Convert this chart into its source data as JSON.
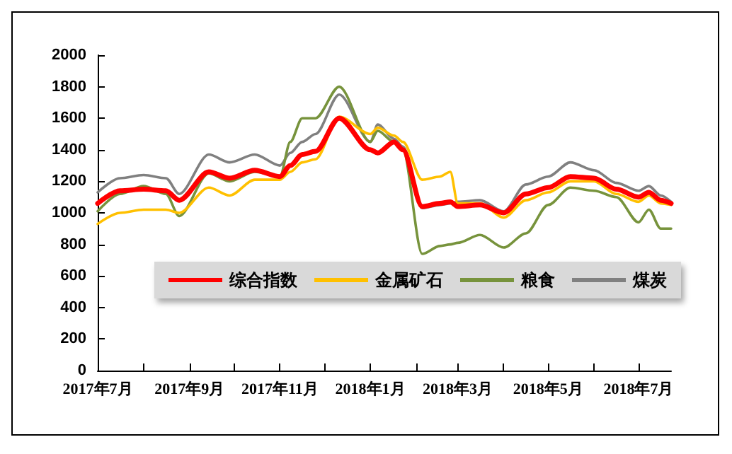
{
  "chart_data": {
    "type": "line",
    "x": [
      "2017-07-01",
      "2017-07-16",
      "2017-08-01",
      "2017-08-16",
      "2017-08-25",
      "2017-09-14",
      "2017-09-28",
      "2017-10-15",
      "2017-11-01",
      "2017-11-08",
      "2017-11-16",
      "2017-11-25",
      "2017-12-11",
      "2018-01-01",
      "2018-01-06",
      "2018-01-17",
      "2018-01-23",
      "2018-02-05",
      "2018-02-17",
      "2018-02-24",
      "2018-03-01",
      "2018-03-16",
      "2018-04-01",
      "2018-04-16",
      "2018-05-01",
      "2018-05-16",
      "2018-06-01",
      "2018-06-16",
      "2018-07-01",
      "2018-07-08",
      "2018-07-16",
      "2018-07-23"
    ],
    "series": [
      {
        "name": "综合指数",
        "color": "#ff0000",
        "values": [
          1060,
          1140,
          1150,
          1140,
          1080,
          1260,
          1220,
          1270,
          1230,
          1300,
          1370,
          1390,
          1600,
          1400,
          1380,
          1450,
          1400,
          1040,
          1060,
          1070,
          1040,
          1050,
          1000,
          1120,
          1160,
          1230,
          1220,
          1150,
          1100,
          1130,
          1080,
          1060
        ]
      },
      {
        "name": "金属矿石",
        "color": "#ffc000",
        "values": [
          930,
          1000,
          1020,
          1020,
          1000,
          1160,
          1110,
          1210,
          1210,
          1260,
          1320,
          1340,
          1610,
          1500,
          1540,
          1490,
          1450,
          1210,
          1230,
          1260,
          1060,
          1060,
          970,
          1080,
          1130,
          1200,
          1200,
          1120,
          1070,
          1110,
          1060,
          1050
        ]
      },
      {
        "name": "粮食",
        "color": "#77933c",
        "values": [
          1010,
          1120,
          1170,
          1120,
          980,
          1250,
          1200,
          1260,
          1230,
          1450,
          1600,
          1600,
          1800,
          1450,
          1520,
          1450,
          1400,
          740,
          790,
          800,
          810,
          860,
          780,
          870,
          1050,
          1160,
          1140,
          1100,
          940,
          1020,
          900,
          900
        ]
      },
      {
        "name": "煤炭",
        "color": "#808080",
        "values": [
          1130,
          1220,
          1240,
          1220,
          1120,
          1370,
          1320,
          1370,
          1300,
          1380,
          1450,
          1500,
          1750,
          1450,
          1560,
          1470,
          1420,
          1030,
          1050,
          1060,
          1070,
          1080,
          1010,
          1180,
          1230,
          1320,
          1270,
          1190,
          1140,
          1170,
          1110,
          1070
        ]
      }
    ],
    "xlim": [
      "2017-07-01",
      "2018-07-23"
    ],
    "xticks": [
      {
        "value": "2017-07-01",
        "label": "2017年7月"
      },
      {
        "value": "2017-08-01",
        "label": null
      },
      {
        "value": "2017-09-01",
        "label": "2017年9月"
      },
      {
        "value": "2017-10-01",
        "label": null
      },
      {
        "value": "2017-11-01",
        "label": "2017年11月"
      },
      {
        "value": "2017-12-01",
        "label": null
      },
      {
        "value": "2018-01-01",
        "label": "2018年1月"
      },
      {
        "value": "2018-02-01",
        "label": null
      },
      {
        "value": "2018-03-01",
        "label": "2018年3月"
      },
      {
        "value": "2018-04-01",
        "label": null
      },
      {
        "value": "2018-05-01",
        "label": "2018年5月"
      },
      {
        "value": "2018-06-01",
        "label": null
      },
      {
        "value": "2018-07-01",
        "label": "2018年7月"
      }
    ],
    "ylim": [
      0,
      2000
    ],
    "yticks": [
      0,
      200,
      400,
      600,
      800,
      1000,
      1200,
      1400,
      1600,
      1800,
      2000
    ],
    "grid": false,
    "legend": "bottom",
    "marker": "none",
    "line_style": "solid"
  }
}
